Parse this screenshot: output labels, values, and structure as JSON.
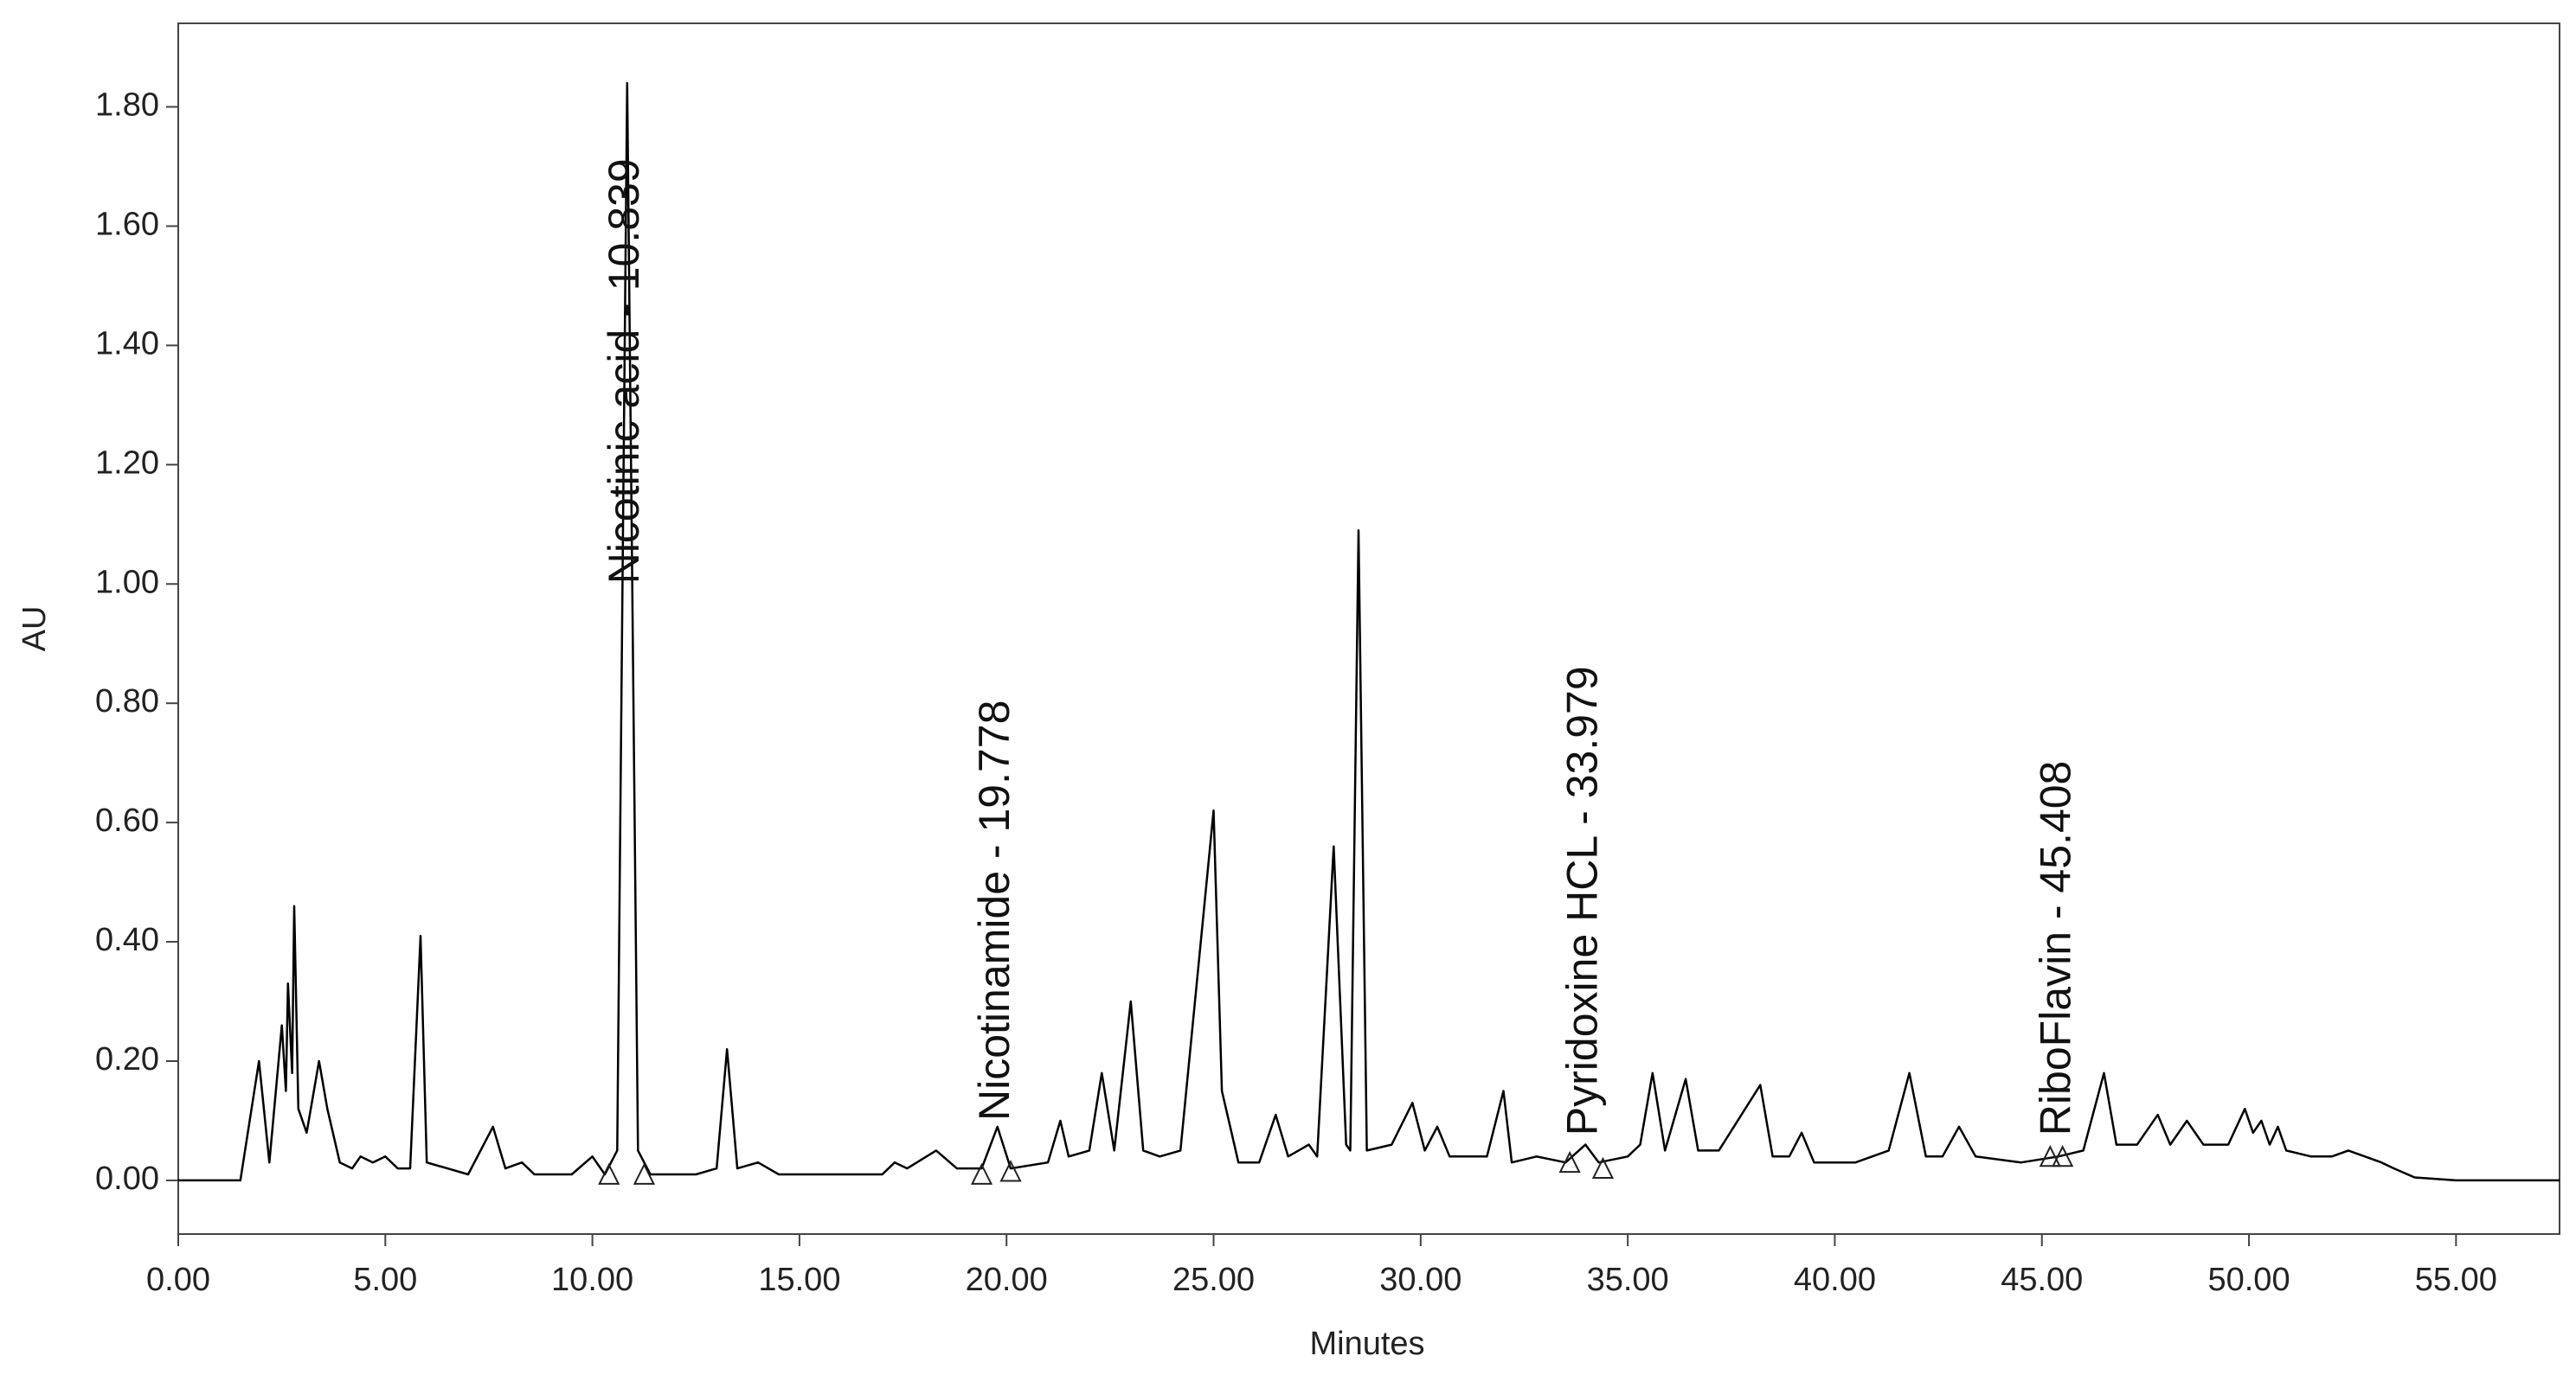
{
  "chart_data": {
    "type": "line",
    "xlabel": "Minutes",
    "ylabel": "AU",
    "color": "#000000",
    "xlim": [
      0,
      57.5
    ],
    "ylim": [
      -0.09,
      1.94
    ],
    "xticks": [
      {
        "value": 0,
        "label": "0.00"
      },
      {
        "value": 5,
        "label": "5.00"
      },
      {
        "value": 10,
        "label": "10.00"
      },
      {
        "value": 15,
        "label": "15.00"
      },
      {
        "value": 20,
        "label": "20.00"
      },
      {
        "value": 25,
        "label": "25.00"
      },
      {
        "value": 30,
        "label": "30.00"
      },
      {
        "value": 35,
        "label": "35.00"
      },
      {
        "value": 40,
        "label": "40.00"
      },
      {
        "value": 45,
        "label": "45.00"
      },
      {
        "value": 50,
        "label": "50.00"
      },
      {
        "value": 55,
        "label": "55.00"
      }
    ],
    "yticks": [
      {
        "value": 0,
        "label": "0.00"
      },
      {
        "value": 0.2,
        "label": "0.20"
      },
      {
        "value": 0.4,
        "label": "0.40"
      },
      {
        "value": 0.6,
        "label": "0.60"
      },
      {
        "value": 0.8,
        "label": "0.80"
      },
      {
        "value": 1.0,
        "label": "1.00"
      },
      {
        "value": 1.2,
        "label": "1.20"
      },
      {
        "value": 1.4,
        "label": "1.40"
      },
      {
        "value": 1.6,
        "label": "1.60"
      },
      {
        "value": 1.8,
        "label": "1.80"
      }
    ],
    "x": [
      0,
      1.5,
      1.95,
      2.2,
      2.5,
      2.6,
      2.65,
      2.75,
      2.8,
      2.9,
      3.1,
      3.4,
      3.6,
      3.9,
      4.2,
      4.4,
      4.7,
      5.0,
      5.3,
      5.6,
      5.85,
      6.0,
      6.5,
      7.0,
      7.6,
      7.9,
      8.3,
      8.6,
      9.5,
      10.0,
      10.3,
      10.6,
      10.84,
      11.1,
      11.4,
      12.5,
      13.0,
      13.25,
      13.5,
      14.0,
      14.5,
      15.0,
      16.0,
      17.0,
      17.3,
      17.6,
      18.3,
      18.8,
      19.4,
      19.78,
      20.1,
      21.0,
      21.3,
      21.5,
      22.0,
      22.3,
      22.6,
      23.0,
      23.3,
      23.7,
      24.2,
      25.0,
      25.2,
      25.3,
      25.6,
      26.1,
      26.5,
      26.8,
      27.3,
      27.5,
      27.9,
      28.2,
      28.3,
      28.5,
      28.7,
      29.3,
      29.8,
      30.1,
      30.4,
      30.7,
      31.2,
      31.6,
      32.0,
      32.2,
      32.8,
      33.5,
      33.98,
      34.3,
      35.0,
      35.3,
      35.6,
      35.9,
      36.4,
      36.7,
      37.2,
      38.2,
      38.5,
      38.9,
      39.2,
      39.5,
      40.5,
      41.3,
      41.8,
      42.2,
      42.6,
      43.0,
      43.4,
      44.5,
      45.4,
      46.0,
      46.5,
      46.8,
      47.3,
      47.8,
      48.1,
      48.5,
      48.9,
      49.5,
      49.9,
      50.1,
      50.3,
      50.5,
      50.7,
      50.9,
      51.5,
      52.0,
      52.4,
      52.8,
      53.2,
      53.5,
      54.0,
      55.0,
      57.5
    ],
    "values": [
      0,
      0,
      0.2,
      0.03,
      0.26,
      0.15,
      0.33,
      0.18,
      0.46,
      0.12,
      0.08,
      0.2,
      0.12,
      0.03,
      0.02,
      0.04,
      0.03,
      0.04,
      0.02,
      0.02,
      0.41,
      0.03,
      0.02,
      0.01,
      0.09,
      0.02,
      0.03,
      0.01,
      0.01,
      0.04,
      0.01,
      0.05,
      1.84,
      0.05,
      0.01,
      0.01,
      0.02,
      0.22,
      0.02,
      0.03,
      0.01,
      0.01,
      0.01,
      0.01,
      0.03,
      0.02,
      0.05,
      0.02,
      0.02,
      0.09,
      0.02,
      0.03,
      0.1,
      0.04,
      0.05,
      0.18,
      0.05,
      0.3,
      0.05,
      0.04,
      0.05,
      0.62,
      0.15,
      0.12,
      0.03,
      0.03,
      0.11,
      0.04,
      0.06,
      0.04,
      0.56,
      0.06,
      0.05,
      1.09,
      0.05,
      0.06,
      0.13,
      0.05,
      0.09,
      0.04,
      0.04,
      0.04,
      0.15,
      0.03,
      0.04,
      0.03,
      0.06,
      0.03,
      0.04,
      0.06,
      0.18,
      0.05,
      0.17,
      0.05,
      0.05,
      0.16,
      0.04,
      0.04,
      0.08,
      0.03,
      0.03,
      0.05,
      0.18,
      0.04,
      0.04,
      0.09,
      0.04,
      0.03,
      0.04,
      0.05,
      0.18,
      0.06,
      0.06,
      0.11,
      0.06,
      0.1,
      0.06,
      0.06,
      0.12,
      0.08,
      0.1,
      0.06,
      0.09,
      0.05,
      0.04,
      0.04,
      0.05,
      0.04,
      0.03,
      0.02,
      0.005,
      0,
      0
    ],
    "annotations": [
      {
        "text": "Nicotinic acid - 10.839",
        "x": 10.839,
        "y": 1.0
      },
      {
        "text": "Nicotinamide - 19.778",
        "x": 19.778,
        "y": 0.1
      },
      {
        "text": "Pyridoxine HCL - 33.979",
        "x": 33.979,
        "y": 0.075
      },
      {
        "text": "RiboFlavin - 45.408",
        "x": 45.408,
        "y": 0.075
      }
    ],
    "baseline_marks": {
      "x": [
        10.4,
        11.25,
        19.4,
        20.1,
        33.6,
        34.4,
        45.2,
        45.5
      ],
      "y": [
        0,
        0,
        0,
        0.005,
        0.02,
        0.01,
        0.03,
        0.03
      ]
    }
  }
}
